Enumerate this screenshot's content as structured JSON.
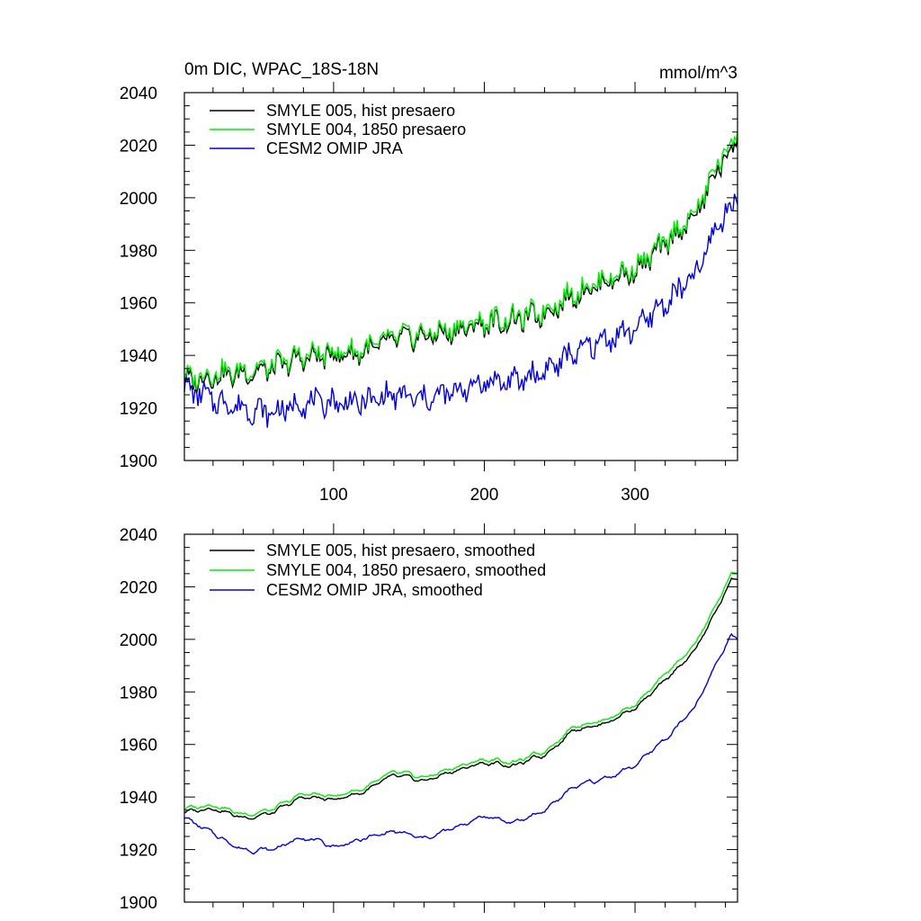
{
  "figure": {
    "title_left": "0m DIC, WPAC_18S-18N",
    "title_right": "mmol/m^3"
  },
  "colors": {
    "black": "#000000",
    "green": "#00ee00",
    "blue": "#0000dd"
  },
  "chart_data": [
    {
      "type": "line",
      "title": "0m DIC, WPAC_18S-18N",
      "units": "mmol/m^3",
      "xlim": [
        1,
        368
      ],
      "ylim": [
        1900,
        2040
      ],
      "xticks": [
        100,
        200,
        300
      ],
      "yticks": [
        1900,
        1920,
        1940,
        1960,
        1980,
        2000,
        2020,
        2040
      ],
      "xtick_labels": [
        "100",
        "200",
        "300"
      ],
      "ytick_labels": [
        "1900",
        "1920",
        "1940",
        "1960",
        "1980",
        "2000",
        "2020",
        "2040"
      ],
      "legend": [
        "SMYLE 005, hist presaero",
        "SMYLE 004, 1850 presaero",
        "CESM2 OMIP JRA"
      ],
      "series": [
        {
          "name": "SMYLE 005, hist presaero",
          "color": "black",
          "anchors": [
            [
              1,
              1930
            ],
            [
              20,
              1932
            ],
            [
              40,
              1933
            ],
            [
              60,
              1935
            ],
            [
              80,
              1939
            ],
            [
              100,
              1940
            ],
            [
              120,
              1941
            ],
            [
              140,
              1946
            ],
            [
              160,
              1947
            ],
            [
              180,
              1949
            ],
            [
              200,
              1952
            ],
            [
              220,
              1953
            ],
            [
              240,
              1956
            ],
            [
              260,
              1963
            ],
            [
              280,
              1968
            ],
            [
              300,
              1972
            ],
            [
              320,
              1982
            ],
            [
              340,
              1993
            ],
            [
              355,
              2011
            ],
            [
              368,
              2022
            ]
          ],
          "noise": 3.5
        },
        {
          "name": "SMYLE 004, 1850 presaero",
          "color": "green",
          "anchors": [
            [
              1,
              1931
            ],
            [
              20,
              1933
            ],
            [
              40,
              1934
            ],
            [
              60,
              1936
            ],
            [
              80,
              1940
            ],
            [
              100,
              1941
            ],
            [
              120,
              1942
            ],
            [
              140,
              1947
            ],
            [
              160,
              1948
            ],
            [
              180,
              1950
            ],
            [
              200,
              1953
            ],
            [
              220,
              1954
            ],
            [
              240,
              1957
            ],
            [
              260,
              1964
            ],
            [
              280,
              1969
            ],
            [
              300,
              1973
            ],
            [
              320,
              1983
            ],
            [
              340,
              1994
            ],
            [
              355,
              2013
            ],
            [
              368,
              2024
            ]
          ],
          "noise": 3.5
        },
        {
          "name": "CESM2 OMIP JRA",
          "color": "blue",
          "anchors": [
            [
              1,
              1928
            ],
            [
              20,
              1923
            ],
            [
              40,
              1920
            ],
            [
              60,
              1918
            ],
            [
              80,
              1922
            ],
            [
              100,
              1922
            ],
            [
              120,
              1922
            ],
            [
              140,
              1925
            ],
            [
              160,
              1923
            ],
            [
              180,
              1926
            ],
            [
              200,
              1930
            ],
            [
              220,
              1930
            ],
            [
              240,
              1934
            ],
            [
              260,
              1941
            ],
            [
              280,
              1946
            ],
            [
              300,
              1950
            ],
            [
              320,
              1960
            ],
            [
              340,
              1970
            ],
            [
              355,
              1990
            ],
            [
              368,
              2000
            ]
          ],
          "noise": 4
        }
      ]
    },
    {
      "type": "line",
      "xlim": [
        1,
        368
      ],
      "ylim": [
        1900,
        2040
      ],
      "xticks": [
        100,
        200,
        300
      ],
      "yticks": [
        1900,
        1920,
        1940,
        1960,
        1980,
        2000,
        2020,
        2040
      ],
      "ytick_labels": [
        "1900",
        "1920",
        "1940",
        "1960",
        "1980",
        "2000",
        "2020",
        "2040"
      ],
      "legend": [
        "SMYLE 005, hist presaero, smoothed",
        "SMYLE 004, 1850 presaero, smoothed",
        "CESM2 OMIP JRA, smoothed"
      ],
      "series": [
        {
          "name": "SMYLE 005, hist presaero, smoothed",
          "color": "black",
          "anchors": [
            [
              1,
              1934
            ],
            [
              20,
              1936
            ],
            [
              40,
              1932
            ],
            [
              60,
              1934
            ],
            [
              80,
              1940
            ],
            [
              100,
              1939
            ],
            [
              120,
              1942
            ],
            [
              140,
              1948
            ],
            [
              160,
              1946
            ],
            [
              180,
              1950
            ],
            [
              200,
              1953
            ],
            [
              220,
              1952
            ],
            [
              240,
              1956
            ],
            [
              260,
              1966
            ],
            [
              280,
              1968
            ],
            [
              300,
              1974
            ],
            [
              320,
              1984
            ],
            [
              340,
              1996
            ],
            [
              355,
              2012
            ],
            [
              364,
              2023
            ],
            [
              368,
              2023
            ]
          ],
          "noise": 1.6
        },
        {
          "name": "SMYLE 004, 1850 presaero, smoothed",
          "color": "green",
          "anchors": [
            [
              1,
              1935
            ],
            [
              20,
              1937
            ],
            [
              40,
              1933
            ],
            [
              60,
              1935
            ],
            [
              80,
              1941
            ],
            [
              100,
              1940
            ],
            [
              120,
              1943
            ],
            [
              140,
              1949
            ],
            [
              160,
              1947
            ],
            [
              180,
              1951
            ],
            [
              200,
              1954
            ],
            [
              220,
              1953
            ],
            [
              240,
              1957
            ],
            [
              260,
              1967
            ],
            [
              280,
              1969
            ],
            [
              300,
              1975
            ],
            [
              320,
              1986
            ],
            [
              340,
              1998
            ],
            [
              355,
              2014
            ],
            [
              364,
              2025
            ],
            [
              368,
              2025
            ]
          ],
          "noise": 1.6
        },
        {
          "name": "CESM2 OMIP JRA, smoothed",
          "color": "blue",
          "anchors": [
            [
              1,
              1932
            ],
            [
              20,
              1926
            ],
            [
              40,
              1920
            ],
            [
              60,
              1920
            ],
            [
              80,
              1925
            ],
            [
              100,
              1921
            ],
            [
              120,
              1924
            ],
            [
              140,
              1927
            ],
            [
              160,
              1924
            ],
            [
              180,
              1928
            ],
            [
              200,
              1933
            ],
            [
              220,
              1930
            ],
            [
              240,
              1935
            ],
            [
              260,
              1944
            ],
            [
              280,
              1947
            ],
            [
              300,
              1952
            ],
            [
              320,
              1962
            ],
            [
              340,
              1974
            ],
            [
              355,
              1992
            ],
            [
              364,
              2002
            ],
            [
              368,
              2000
            ]
          ],
          "noise": 1.8
        }
      ]
    }
  ]
}
